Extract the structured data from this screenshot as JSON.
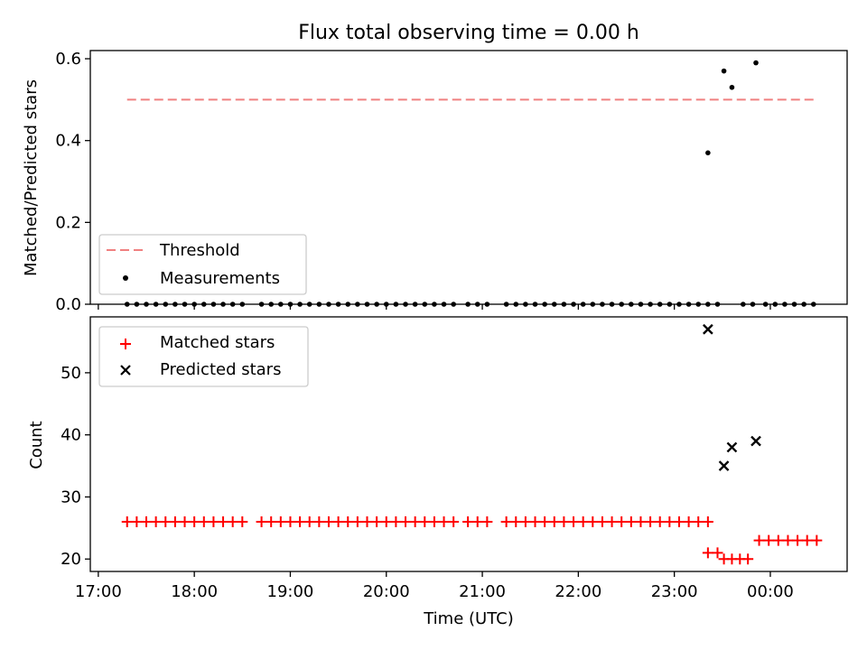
{
  "chart_data": [
    {
      "type": "scatter",
      "title": "Flux total observing time = 0.00 h",
      "xlabel": "",
      "ylabel": "Matched/Predicted stars",
      "ylim": [
        0,
        0.62
      ],
      "yticks": [
        0.0,
        0.2,
        0.4,
        0.6
      ],
      "ytick_labels": [
        "0.0",
        "0.2",
        "0.4",
        "0.6"
      ],
      "legend_position": "lower-left",
      "threshold": {
        "name": "Threshold",
        "y": 0.5,
        "x_start": "17:18",
        "x_end": "00:27",
        "color": "#f08080"
      },
      "series": [
        {
          "name": "Measurements",
          "color": "#000000",
          "x": [
            "17:18",
            "17:24",
            "17:30",
            "17:36",
            "17:42",
            "17:48",
            "17:54",
            "18:00",
            "18:06",
            "18:12",
            "18:18",
            "18:24",
            "18:30",
            "18:42",
            "18:48",
            "18:54",
            "19:00",
            "19:06",
            "19:12",
            "19:18",
            "19:24",
            "19:30",
            "19:36",
            "19:42",
            "19:48",
            "19:54",
            "20:00",
            "20:06",
            "20:12",
            "20:18",
            "20:24",
            "20:30",
            "20:36",
            "20:42",
            "20:51",
            "20:57",
            "21:03",
            "21:15",
            "21:21",
            "21:27",
            "21:33",
            "21:39",
            "21:45",
            "21:51",
            "21:57",
            "22:03",
            "22:09",
            "22:15",
            "22:21",
            "22:27",
            "22:33",
            "22:39",
            "22:45",
            "22:51",
            "22:57",
            "23:03",
            "23:09",
            "23:15",
            "23:21",
            "23:27",
            "23:43",
            "23:49",
            "23:57",
            "00:03",
            "00:09",
            "00:15",
            "00:21",
            "00:27",
            "23:21",
            "23:31",
            "23:36",
            "23:51"
          ],
          "y": [
            0,
            0,
            0,
            0,
            0,
            0,
            0,
            0,
            0,
            0,
            0,
            0,
            0,
            0,
            0,
            0,
            0,
            0,
            0,
            0,
            0,
            0,
            0,
            0,
            0,
            0,
            0,
            0,
            0,
            0,
            0,
            0,
            0,
            0,
            0,
            0,
            0,
            0,
            0,
            0,
            0,
            0,
            0,
            0,
            0,
            0,
            0,
            0,
            0,
            0,
            0,
            0,
            0,
            0,
            0,
            0,
            0,
            0,
            0,
            0,
            0,
            0,
            0,
            0,
            0,
            0,
            0,
            0,
            0.37,
            0.57,
            0.53,
            0.59
          ]
        }
      ]
    },
    {
      "type": "scatter",
      "title": "",
      "xlabel": "Time (UTC)",
      "ylabel": "Count",
      "ylim": [
        18,
        59
      ],
      "yticks": [
        20,
        30,
        40,
        50
      ],
      "ytick_labels": [
        "20",
        "30",
        "40",
        "50"
      ],
      "xlim": [
        "16:55",
        "00:48"
      ],
      "xticks": [
        "17:00",
        "18:00",
        "19:00",
        "20:00",
        "21:00",
        "22:00",
        "23:00",
        "00:00"
      ],
      "xtick_labels": [
        "17:00",
        "18:00",
        "19:00",
        "20:00",
        "21:00",
        "22:00",
        "23:00",
        "00:00"
      ],
      "legend_position": "upper-left",
      "series": [
        {
          "name": "Matched stars",
          "color": "#ff0000",
          "marker": "+",
          "x": [
            "17:18",
            "17:24",
            "17:30",
            "17:36",
            "17:42",
            "17:48",
            "17:54",
            "18:00",
            "18:06",
            "18:12",
            "18:18",
            "18:24",
            "18:30",
            "18:42",
            "18:48",
            "18:54",
            "19:00",
            "19:06",
            "19:12",
            "19:18",
            "19:24",
            "19:30",
            "19:36",
            "19:42",
            "19:48",
            "19:54",
            "20:00",
            "20:06",
            "20:12",
            "20:18",
            "20:24",
            "20:30",
            "20:36",
            "20:42",
            "20:51",
            "20:57",
            "21:03",
            "21:15",
            "21:21",
            "21:27",
            "21:33",
            "21:39",
            "21:45",
            "21:51",
            "21:57",
            "22:03",
            "22:09",
            "22:15",
            "22:21",
            "22:27",
            "22:33",
            "22:39",
            "22:45",
            "22:51",
            "22:57",
            "23:03",
            "23:09",
            "23:15",
            "23:21",
            "23:21",
            "23:27",
            "23:31",
            "23:36",
            "23:41",
            "23:46",
            "23:53",
            "23:59",
            "00:05",
            "00:11",
            "00:17",
            "00:23",
            "00:29"
          ],
          "y": [
            26,
            26,
            26,
            26,
            26,
            26,
            26,
            26,
            26,
            26,
            26,
            26,
            26,
            26,
            26,
            26,
            26,
            26,
            26,
            26,
            26,
            26,
            26,
            26,
            26,
            26,
            26,
            26,
            26,
            26,
            26,
            26,
            26,
            26,
            26,
            26,
            26,
            26,
            26,
            26,
            26,
            26,
            26,
            26,
            26,
            26,
            26,
            26,
            26,
            26,
            26,
            26,
            26,
            26,
            26,
            26,
            26,
            26,
            26,
            21,
            21,
            20,
            20,
            20,
            20,
            23,
            23,
            23,
            23,
            23,
            23,
            23
          ]
        },
        {
          "name": "Predicted stars",
          "color": "#000000",
          "marker": "x",
          "x": [
            "23:21",
            "23:31",
            "23:36",
            "23:51"
          ],
          "y": [
            57,
            35,
            38,
            39
          ]
        }
      ]
    }
  ]
}
